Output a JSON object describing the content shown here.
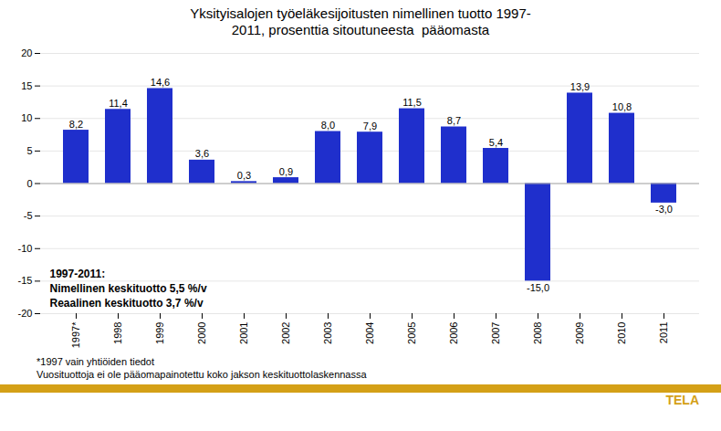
{
  "chart_data": {
    "type": "bar",
    "title": "Yksityisalojen työeläkesijoitusten nimellinen tuotto 1997-\n2011, prosenttia sitoutuneesta  pääomasta",
    "categories": [
      "1997*",
      "1998",
      "1999",
      "2000",
      "2001",
      "2002",
      "2003",
      "2004",
      "2005",
      "2006",
      "2007",
      "2008",
      "2009",
      "2010",
      "2011"
    ],
    "values": [
      8.2,
      11.4,
      14.6,
      3.6,
      0.3,
      0.9,
      8.0,
      7.9,
      11.5,
      8.7,
      5.4,
      -15.0,
      13.9,
      10.8,
      -3.0
    ],
    "value_labels": [
      "8,2",
      "11,4",
      "14,6",
      "3,6",
      "0,3",
      "0,9",
      "8,0",
      "7,9",
      "11,5",
      "8,7",
      "5,4",
      "-15,0",
      "13,9",
      "10,8",
      "-3,0"
    ],
    "data_labels": true,
    "color": "#1F2FCC",
    "ylim": [
      -20,
      20
    ],
    "yticks": [
      -20,
      -15,
      -10,
      -5,
      0,
      5,
      10,
      15,
      20
    ],
    "grid": true,
    "annotations": [
      "1997-2011:",
      "Nimellinen keskituotto 5,5 %/v",
      "Reaalinen keskituotto 3,7 %/v"
    ],
    "footnotes": [
      "*1997 vain yhtiöiden tiedot",
      "Vuosituottoja ei ole pääomapainotettu koko jakson keskituottolaskennassa"
    ],
    "source": "TELA"
  }
}
